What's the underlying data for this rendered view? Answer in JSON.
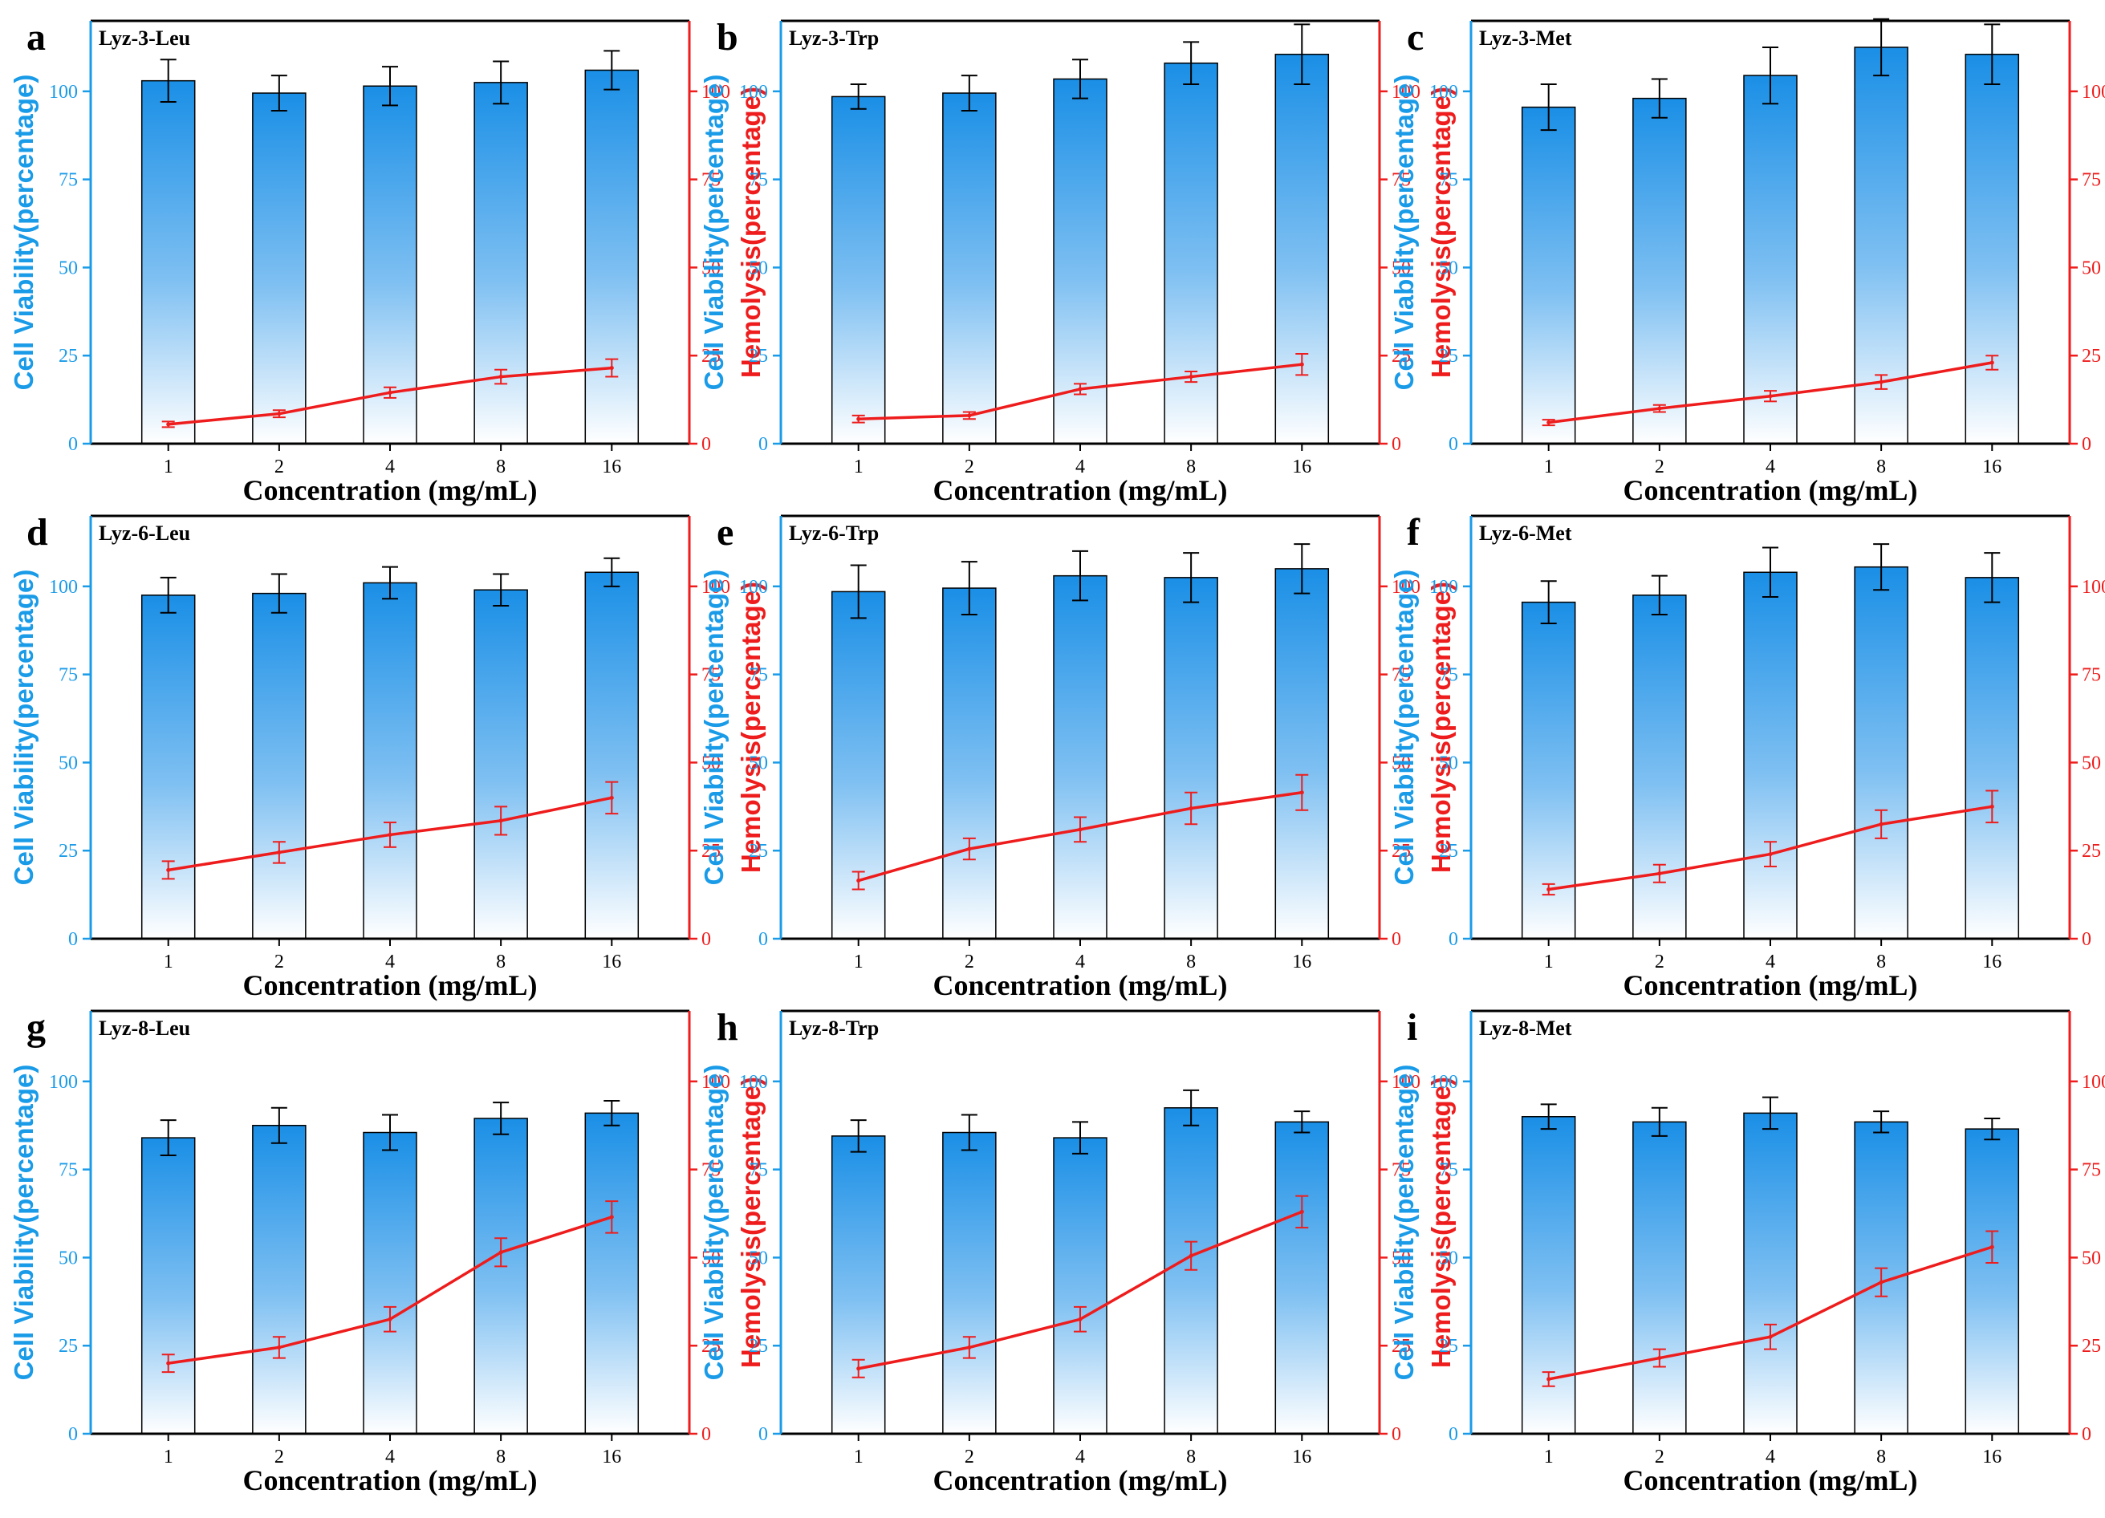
{
  "figure": {
    "colors": {
      "bar_top": "#1a8fe6",
      "bar_bottom": "#ffffff",
      "left_axis": "#1a9be8",
      "right_axis": "#ee1c1c",
      "line": "#ee1c1c",
      "frame": "#000000"
    }
  },
  "chart_data": [
    {
      "panel": "a",
      "title": "Lyz-3-Leu",
      "type": "bar+line",
      "categories": [
        "1",
        "2",
        "4",
        "8",
        "16"
      ],
      "xlabel": "Concentration (mg/mL)",
      "ylabel_left": "Cell Viability(percentage)",
      "ylabel_right": "Hemolysis(percentage)",
      "ylim": [
        0,
        120
      ],
      "yticks": [
        "0",
        "25",
        "50",
        "75",
        "100"
      ],
      "series": [
        {
          "name": "Cell Viability",
          "kind": "bar",
          "axis": "left",
          "values": [
            103,
            99.5,
            101.5,
            102.5,
            106
          ],
          "errors": [
            6,
            5,
            5.5,
            6,
            5.5
          ]
        },
        {
          "name": "Hemolysis",
          "kind": "line",
          "axis": "right",
          "values": [
            5.5,
            8.5,
            14.5,
            19,
            21.5
          ],
          "errors": [
            0.8,
            1,
            1.5,
            2,
            2.5
          ]
        }
      ]
    },
    {
      "panel": "b",
      "title": "Lyz-3-Trp",
      "type": "bar+line",
      "categories": [
        "1",
        "2",
        "4",
        "8",
        "16"
      ],
      "xlabel": "Concentration (mg/mL)",
      "ylabel_left": "Cell Viability(percentage)",
      "ylabel_right": "Hemolysis(percentage)",
      "ylim": [
        0,
        120
      ],
      "yticks": [
        "0",
        "25",
        "50",
        "75",
        "100"
      ],
      "series": [
        {
          "name": "Cell Viability",
          "kind": "bar",
          "axis": "left",
          "values": [
            98.5,
            99.5,
            103.5,
            108,
            110.5
          ],
          "errors": [
            3.5,
            5,
            5.5,
            6,
            8.5
          ]
        },
        {
          "name": "Hemolysis",
          "kind": "line",
          "axis": "right",
          "values": [
            7,
            8,
            15.5,
            19,
            22.5
          ],
          "errors": [
            1,
            1,
            1.5,
            1.5,
            3
          ]
        }
      ]
    },
    {
      "panel": "c",
      "title": "Lyz-3-Met",
      "type": "bar+line",
      "categories": [
        "1",
        "2",
        "4",
        "8",
        "16"
      ],
      "xlabel": "Concentration (mg/mL)",
      "ylabel_left": "Cell Viability(percentage)",
      "ylabel_right": "Hemolysis(percentage)",
      "ylim": [
        0,
        120
      ],
      "yticks": [
        "0",
        "25",
        "50",
        "75",
        "100"
      ],
      "series": [
        {
          "name": "Cell Viability",
          "kind": "bar",
          "axis": "left",
          "values": [
            95.5,
            98,
            104.5,
            112.5,
            110.5
          ],
          "errors": [
            6.5,
            5.5,
            8,
            8,
            8.5
          ]
        },
        {
          "name": "Hemolysis",
          "kind": "line",
          "axis": "right",
          "values": [
            6,
            10,
            13.5,
            17.5,
            23
          ],
          "errors": [
            0.8,
            1,
            1.5,
            2,
            2
          ]
        }
      ]
    },
    {
      "panel": "d",
      "title": "Lyz-6-Leu",
      "type": "bar+line",
      "categories": [
        "1",
        "2",
        "4",
        "8",
        "16"
      ],
      "xlabel": "Concentration (mg/mL)",
      "ylabel_left": "Cell Viability(percentage)",
      "ylabel_right": "Hemolysis(percentage)",
      "ylim": [
        0,
        120
      ],
      "yticks": [
        "0",
        "25",
        "50",
        "75",
        "100"
      ],
      "series": [
        {
          "name": "Cell Viability",
          "kind": "bar",
          "axis": "left",
          "values": [
            97.5,
            98,
            101,
            99,
            104
          ],
          "errors": [
            5,
            5.5,
            4.5,
            4.5,
            4
          ]
        },
        {
          "name": "Hemolysis",
          "kind": "line",
          "axis": "right",
          "values": [
            19.5,
            24.5,
            29.5,
            33.5,
            40
          ],
          "errors": [
            2.5,
            3,
            3.5,
            4,
            4.5
          ]
        }
      ]
    },
    {
      "panel": "e",
      "title": "Lyz-6-Trp",
      "type": "bar+line",
      "categories": [
        "1",
        "2",
        "4",
        "8",
        "16"
      ],
      "xlabel": "Concentration (mg/mL)",
      "ylabel_left": "Cell Viability(percentage)",
      "ylabel_right": "Hemolysis(percentage)",
      "ylim": [
        0,
        120
      ],
      "yticks": [
        "0",
        "25",
        "50",
        "75",
        "100"
      ],
      "series": [
        {
          "name": "Cell Viability",
          "kind": "bar",
          "axis": "left",
          "values": [
            98.5,
            99.5,
            103,
            102.5,
            105
          ],
          "errors": [
            7.5,
            7.5,
            7,
            7,
            7
          ]
        },
        {
          "name": "Hemolysis",
          "kind": "line",
          "axis": "right",
          "values": [
            16.5,
            25.5,
            31,
            37,
            41.5
          ],
          "errors": [
            2.5,
            3,
            3.5,
            4.5,
            5
          ]
        }
      ]
    },
    {
      "panel": "f",
      "title": "Lyz-6-Met",
      "type": "bar+line",
      "categories": [
        "1",
        "2",
        "4",
        "8",
        "16"
      ],
      "xlabel": "Concentration (mg/mL)",
      "ylabel_left": "Cell Viability(percentage)",
      "ylabel_right": "Hemolysis(percentage)",
      "ylim": [
        0,
        120
      ],
      "yticks": [
        "0",
        "25",
        "50",
        "75",
        "100"
      ],
      "series": [
        {
          "name": "Cell Viability",
          "kind": "bar",
          "axis": "left",
          "values": [
            95.5,
            97.5,
            104,
            105.5,
            102.5
          ],
          "errors": [
            6,
            5.5,
            7,
            6.5,
            7
          ]
        },
        {
          "name": "Hemolysis",
          "kind": "line",
          "axis": "right",
          "values": [
            14,
            18.5,
            24,
            32.5,
            37.5
          ],
          "errors": [
            1.5,
            2.5,
            3.5,
            4,
            4.5
          ]
        }
      ]
    },
    {
      "panel": "g",
      "title": "Lyz-8-Leu",
      "type": "bar+line",
      "categories": [
        "1",
        "2",
        "4",
        "8",
        "16"
      ],
      "xlabel": "Concentration (mg/mL)",
      "ylabel_left": "Cell Viability(percentage)",
      "ylabel_right": "Hemolysis(percentage)",
      "ylim": [
        0,
        120
      ],
      "yticks": [
        "0",
        "25",
        "50",
        "75",
        "100"
      ],
      "series": [
        {
          "name": "Cell Viability",
          "kind": "bar",
          "axis": "left",
          "values": [
            84,
            87.5,
            85.5,
            89.5,
            91
          ],
          "errors": [
            5,
            5,
            5,
            4.5,
            3.5
          ]
        },
        {
          "name": "Hemolysis",
          "kind": "line",
          "axis": "right",
          "values": [
            20,
            24.5,
            32.5,
            51.5,
            61.5
          ],
          "errors": [
            2.5,
            3,
            3.5,
            4,
            4.5
          ]
        }
      ]
    },
    {
      "panel": "h",
      "title": "Lyz-8-Trp",
      "type": "bar+line",
      "categories": [
        "1",
        "2",
        "4",
        "8",
        "16"
      ],
      "xlabel": "Concentration (mg/mL)",
      "ylabel_left": "Cell Viability(percentage)",
      "ylabel_right": "Hemolysis(percentage)",
      "ylim": [
        0,
        120
      ],
      "yticks": [
        "0",
        "25",
        "50",
        "75",
        "100"
      ],
      "series": [
        {
          "name": "Cell Viability",
          "kind": "bar",
          "axis": "left",
          "values": [
            84.5,
            85.5,
            84,
            92.5,
            88.5
          ],
          "errors": [
            4.5,
            5,
            4.5,
            5,
            3
          ]
        },
        {
          "name": "Hemolysis",
          "kind": "line",
          "axis": "right",
          "values": [
            18.5,
            24.5,
            32.5,
            50.5,
            63
          ],
          "errors": [
            2.5,
            3,
            3.5,
            4,
            4.5
          ]
        }
      ]
    },
    {
      "panel": "i",
      "title": "Lyz-8-Met",
      "type": "bar+line",
      "categories": [
        "1",
        "2",
        "4",
        "8",
        "16"
      ],
      "xlabel": "Concentration (mg/mL)",
      "ylabel_left": "Cell Viability(percentage)",
      "ylabel_right": "Hemolysis(percentage)",
      "ylim": [
        0,
        120
      ],
      "yticks": [
        "0",
        "25",
        "50",
        "75",
        "100"
      ],
      "series": [
        {
          "name": "Cell Viability",
          "kind": "bar",
          "axis": "left",
          "values": [
            90,
            88.5,
            91,
            88.5,
            86.5
          ],
          "errors": [
            3.5,
            4,
            4.5,
            3,
            3
          ]
        },
        {
          "name": "Hemolysis",
          "kind": "line",
          "axis": "right",
          "values": [
            15.5,
            21.5,
            27.5,
            43,
            53
          ],
          "errors": [
            2,
            2.5,
            3.5,
            4,
            4.5
          ]
        }
      ]
    }
  ]
}
